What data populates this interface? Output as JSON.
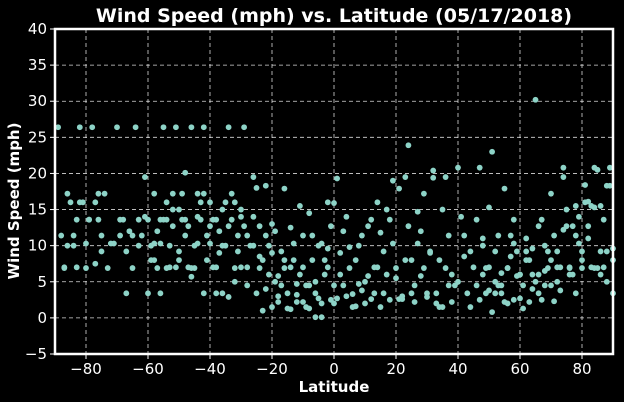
{
  "chart_data": {
    "type": "scatter",
    "title": "Wind Speed (mph) vs. Latitude (05/17/2018)",
    "xlabel": "Latitude",
    "ylabel": "Wind Speed (mph)",
    "xlim": [
      -90,
      90
    ],
    "ylim": [
      -5,
      40
    ],
    "xticks": [
      -80,
      -60,
      -40,
      -20,
      0,
      20,
      40,
      60,
      80
    ],
    "yticks": [
      -5,
      0,
      5,
      10,
      15,
      20,
      25,
      30,
      35,
      40
    ],
    "xtick_labels": [
      "−80",
      "−60",
      "−40",
      "−20",
      "0",
      "20",
      "40",
      "60",
      "80"
    ],
    "ytick_labels": [
      "−5",
      "0",
      "5",
      "10",
      "15",
      "20",
      "25",
      "30",
      "35",
      "40"
    ],
    "grid": true,
    "colors": {
      "background": "#000000",
      "marker": "#8dd3c7",
      "text": "#ffffff"
    },
    "points": [
      [
        -89,
        26.4
      ],
      [
        -87,
        7
      ],
      [
        -86,
        17.2
      ],
      [
        -85,
        16
      ],
      [
        -84,
        10
      ],
      [
        -83,
        13.6
      ],
      [
        -82,
        26.4
      ],
      [
        -81,
        16
      ],
      [
        -80,
        10.3
      ],
      [
        -79,
        13.6
      ],
      [
        -78,
        26.4
      ],
      [
        -77,
        16
      ],
      [
        -76,
        13.6
      ],
      [
        -75,
        9.2
      ],
      [
        -74,
        17.2
      ],
      [
        -73,
        6.9
      ],
      [
        -72,
        10.3
      ],
      [
        -88,
        11.4
      ],
      [
        -87,
        6.9
      ],
      [
        -86,
        10
      ],
      [
        -84,
        11.4
      ],
      [
        -83,
        7
      ],
      [
        -82,
        16
      ],
      [
        -80,
        6.9
      ],
      [
        -79,
        13.6
      ],
      [
        -77,
        7.5
      ],
      [
        -76,
        17.2
      ],
      [
        -75,
        11.4
      ],
      [
        -70,
        26.4
      ],
      [
        -69,
        11.4
      ],
      [
        -68,
        13.6
      ],
      [
        -67,
        3.4
      ],
      [
        -66,
        12
      ],
      [
        -65,
        11.4
      ],
      [
        -64,
        26.4
      ],
      [
        -63,
        13.6
      ],
      [
        -62,
        11.4
      ],
      [
        -61,
        19.5
      ],
      [
        -60,
        13.6
      ],
      [
        -59,
        10
      ],
      [
        -58,
        8
      ],
      [
        -57,
        12
      ],
      [
        -56,
        10.3
      ],
      [
        -55,
        26.4
      ],
      [
        -54,
        16
      ],
      [
        -53,
        7
      ],
      [
        -52,
        12.7
      ],
      [
        -51,
        26.4
      ],
      [
        -50,
        15
      ],
      [
        -49,
        13.6
      ],
      [
        -48,
        11.4
      ],
      [
        -47,
        7
      ],
      [
        -46,
        26.4
      ],
      [
        -45,
        10
      ],
      [
        -44,
        14
      ],
      [
        -43,
        13.6
      ],
      [
        -42,
        26.4
      ],
      [
        -41,
        11.4
      ],
      [
        -40,
        10.3
      ],
      [
        -39,
        7
      ],
      [
        -38,
        13.6
      ],
      [
        -37,
        9
      ],
      [
        -36,
        15
      ],
      [
        -35,
        16
      ],
      [
        -34,
        26.4
      ],
      [
        -33,
        13.6
      ],
      [
        -32,
        6.9
      ],
      [
        -31,
        11.4
      ],
      [
        -30,
        15
      ],
      [
        -29,
        26.4
      ],
      [
        -28,
        7
      ],
      [
        -27,
        10
      ],
      [
        -71,
        10.3
      ],
      [
        -69,
        13.6
      ],
      [
        -67,
        9.2
      ],
      [
        -65,
        6.9
      ],
      [
        -63,
        10
      ],
      [
        -61,
        14
      ],
      [
        -59,
        8
      ],
      [
        -57,
        6.9
      ],
      [
        -55,
        13.6
      ],
      [
        -53,
        10
      ],
      [
        -51,
        7
      ],
      [
        -49,
        17.2
      ],
      [
        -47,
        12.7
      ],
      [
        -45,
        6.9
      ],
      [
        -43,
        16
      ],
      [
        -41,
        8
      ],
      [
        -39,
        13.6
      ],
      [
        -37,
        12
      ],
      [
        -35,
        10
      ],
      [
        -33,
        17.2
      ],
      [
        -31,
        9.2
      ],
      [
        -29,
        12.7
      ],
      [
        -60,
        3.4
      ],
      [
        -58,
        17.2
      ],
      [
        -56,
        13.6
      ],
      [
        -54,
        6.9
      ],
      [
        -52,
        15
      ],
      [
        -50,
        8
      ],
      [
        -48,
        13.6
      ],
      [
        -46,
        5.7
      ],
      [
        -44,
        17.2
      ],
      [
        -42,
        3.4
      ],
      [
        -40,
        16
      ],
      [
        -38,
        7
      ],
      [
        -36,
        3.4
      ],
      [
        -34,
        12.7
      ],
      [
        -32,
        5
      ],
      [
        -30,
        14
      ],
      [
        -28,
        4.5
      ],
      [
        -26,
        10
      ],
      [
        -58,
        10.3
      ],
      [
        -56,
        3.4
      ],
      [
        -54,
        13.6
      ],
      [
        -52,
        17.2
      ],
      [
        -50,
        9.2
      ],
      [
        -48,
        20.1
      ],
      [
        -46,
        6.9
      ],
      [
        -44,
        10.3
      ],
      [
        -42,
        17.2
      ],
      [
        -40,
        12.7
      ],
      [
        -38,
        3.4
      ],
      [
        -36,
        10
      ],
      [
        -34,
        2.9
      ],
      [
        -32,
        16
      ],
      [
        -30,
        7
      ],
      [
        -28,
        11.4
      ],
      [
        -26,
        19.5
      ],
      [
        -25,
        3.4
      ],
      [
        -24,
        12.7
      ],
      [
        -23,
        1
      ],
      [
        -22,
        18.3
      ],
      [
        -21,
        10
      ],
      [
        -20,
        13
      ],
      [
        -19,
        5
      ],
      [
        -18,
        2.2
      ],
      [
        -17,
        9.2
      ],
      [
        -16,
        6.9
      ],
      [
        -15,
        3.4
      ],
      [
        -14,
        12.5
      ],
      [
        -13,
        8
      ],
      [
        -12,
        2.2
      ],
      [
        -11,
        15.5
      ],
      [
        -10,
        11.4
      ],
      [
        -9,
        4.5
      ],
      [
        -8,
        1.3
      ],
      [
        -7,
        8
      ],
      [
        -6,
        3.4
      ],
      [
        -5,
        10
      ],
      [
        -4,
        0.1
      ],
      [
        -3,
        6
      ],
      [
        -2,
        16
      ],
      [
        -1,
        2.5
      ],
      [
        -25,
        18
      ],
      [
        -23,
        8
      ],
      [
        -21,
        6
      ],
      [
        -19,
        12
      ],
      [
        -17,
        4.5
      ],
      [
        -15,
        1.3
      ],
      [
        -13,
        10.3
      ],
      [
        -11,
        6
      ],
      [
        -9,
        1.5
      ],
      [
        -7,
        11.4
      ],
      [
        -5,
        2.7
      ],
      [
        -3,
        8
      ],
      [
        -1,
        12.7
      ],
      [
        -24,
        6.9
      ],
      [
        -22,
        4
      ],
      [
        -20,
        9
      ],
      [
        -18,
        3
      ],
      [
        -16,
        17.9
      ],
      [
        -14,
        7
      ],
      [
        -12,
        4.7
      ],
      [
        -10,
        2.2
      ],
      [
        -8,
        14.5
      ],
      [
        -6,
        5
      ],
      [
        -4,
        2
      ],
      [
        -2,
        9.6
      ],
      [
        0,
        15.9
      ],
      [
        -26,
        14
      ],
      [
        -24,
        8.5
      ],
      [
        -22,
        11.4
      ],
      [
        -20,
        1.5
      ],
      [
        -18,
        5.8
      ],
      [
        -16,
        8
      ],
      [
        -14,
        1.2
      ],
      [
        -12,
        3.2
      ],
      [
        -10,
        7
      ],
      [
        -8,
        4.5
      ],
      [
        -6,
        0.1
      ],
      [
        -4,
        10.3
      ],
      [
        -2,
        7
      ],
      [
        0,
        4.5
      ],
      [
        1,
        19.3
      ],
      [
        2,
        9
      ],
      [
        3,
        12
      ],
      [
        4,
        3
      ],
      [
        5,
        6.9
      ],
      [
        6,
        1.5
      ],
      [
        7,
        8
      ],
      [
        8,
        4.7
      ],
      [
        9,
        11.4
      ],
      [
        10,
        2
      ],
      [
        11,
        5.8
      ],
      [
        12,
        13.6
      ],
      [
        13,
        3.4
      ],
      [
        14,
        7
      ],
      [
        15,
        11.8
      ],
      [
        16,
        9.2
      ],
      [
        17,
        15
      ],
      [
        18,
        2.5
      ],
      [
        19,
        10.3
      ],
      [
        20,
        6.9
      ],
      [
        21,
        17.9
      ],
      [
        22,
        3
      ],
      [
        23,
        19.5
      ],
      [
        24,
        12.7
      ],
      [
        25,
        8
      ],
      [
        26,
        2.2
      ],
      [
        27,
        10.3
      ],
      [
        28,
        5.8
      ],
      [
        29,
        17.2
      ],
      [
        30,
        2.9
      ],
      [
        31,
        9.2
      ],
      [
        32,
        20.4
      ],
      [
        33,
        3.4
      ],
      [
        34,
        8
      ],
      [
        35,
        1.5
      ],
      [
        36,
        19.5
      ],
      [
        37,
        11.4
      ],
      [
        38,
        6
      ],
      [
        0,
        2
      ],
      [
        2,
        6
      ],
      [
        4,
        14
      ],
      [
        6,
        3.3
      ],
      [
        8,
        10
      ],
      [
        10,
        5
      ],
      [
        12,
        2.6
      ],
      [
        14,
        16
      ],
      [
        16,
        3.4
      ],
      [
        18,
        13.6
      ],
      [
        20,
        5.5
      ],
      [
        22,
        2.6
      ],
      [
        24,
        23.9
      ],
      [
        26,
        4.5
      ],
      [
        28,
        12
      ],
      [
        30,
        3.4
      ],
      [
        32,
        19.4
      ],
      [
        34,
        1.5
      ],
      [
        36,
        6.9
      ],
      [
        38,
        2.2
      ],
      [
        1,
        2.7
      ],
      [
        3,
        4.5
      ],
      [
        5,
        9.8
      ],
      [
        7,
        1.6
      ],
      [
        9,
        3.8
      ],
      [
        11,
        12.7
      ],
      [
        13,
        7
      ],
      [
        15,
        1.5
      ],
      [
        17,
        6
      ],
      [
        19,
        19
      ],
      [
        21,
        2.6
      ],
      [
        23,
        8
      ],
      [
        25,
        3.4
      ],
      [
        27,
        14.7
      ],
      [
        29,
        6.9
      ],
      [
        31,
        9
      ],
      [
        33,
        2
      ],
      [
        35,
        15
      ],
      [
        37,
        4.5
      ],
      [
        39,
        4.5
      ],
      [
        40,
        20.8
      ],
      [
        41,
        14
      ],
      [
        42,
        11.4
      ],
      [
        43,
        3.4
      ],
      [
        44,
        9.2
      ],
      [
        45,
        7
      ],
      [
        46,
        4.5
      ],
      [
        47,
        20.8
      ],
      [
        48,
        10
      ],
      [
        49,
        3.4
      ],
      [
        50,
        7
      ],
      [
        51,
        23
      ],
      [
        52,
        5
      ],
      [
        53,
        11.4
      ],
      [
        54,
        3.4
      ],
      [
        55,
        17.9
      ],
      [
        56,
        6.9
      ],
      [
        57,
        11.4
      ],
      [
        58,
        2.5
      ],
      [
        59,
        9.2
      ],
      [
        60,
        6
      ],
      [
        61,
        4.5
      ],
      [
        62,
        8
      ],
      [
        63,
        2.2
      ],
      [
        64,
        9.6
      ],
      [
        65,
        30.2
      ],
      [
        66,
        6
      ],
      [
        67,
        13.6
      ],
      [
        68,
        4.5
      ],
      [
        69,
        9.2
      ],
      [
        70,
        8
      ],
      [
        71,
        11.4
      ],
      [
        72,
        5
      ],
      [
        73,
        7
      ],
      [
        74,
        20.8
      ],
      [
        75,
        15
      ],
      [
        76,
        7
      ],
      [
        77,
        12.7
      ],
      [
        78,
        11.4
      ],
      [
        79,
        14
      ],
      [
        80,
        6.9
      ],
      [
        81,
        16
      ],
      [
        82,
        12.7
      ],
      [
        83,
        15.5
      ],
      [
        84,
        20.8
      ],
      [
        85,
        6.9
      ],
      [
        86,
        9.2
      ],
      [
        87,
        7
      ],
      [
        88,
        18.3
      ],
      [
        89,
        20.8
      ],
      [
        90,
        3.4
      ],
      [
        40,
        5
      ],
      [
        42,
        8.5
      ],
      [
        44,
        1.5
      ],
      [
        46,
        13.6
      ],
      [
        48,
        6
      ],
      [
        50,
        3.8
      ],
      [
        52,
        9.2
      ],
      [
        54,
        4.5
      ],
      [
        56,
        6.9
      ],
      [
        58,
        10.3
      ],
      [
        60,
        2.7
      ],
      [
        62,
        11
      ],
      [
        64,
        6
      ],
      [
        66,
        3.4
      ],
      [
        68,
        10
      ],
      [
        70,
        17.2
      ],
      [
        72,
        7
      ],
      [
        74,
        19.5
      ],
      [
        76,
        6
      ],
      [
        78,
        15.5
      ],
      [
        80,
        8
      ],
      [
        82,
        11
      ],
      [
        84,
        15.3
      ],
      [
        86,
        6
      ],
      [
        88,
        9.2
      ],
      [
        90,
        9.6
      ],
      [
        47,
        2.5
      ],
      [
        49,
        6.9
      ],
      [
        51,
        0.8
      ],
      [
        53,
        4.5
      ],
      [
        55,
        2.2
      ],
      [
        57,
        8.5
      ],
      [
        59,
        5.8
      ],
      [
        61,
        1.3
      ],
      [
        63,
        8
      ],
      [
        65,
        5
      ],
      [
        67,
        2.5
      ],
      [
        69,
        6.9
      ],
      [
        71,
        2.3
      ],
      [
        73,
        3.8
      ],
      [
        75,
        12.7
      ],
      [
        77,
        6
      ],
      [
        79,
        10.3
      ],
      [
        81,
        18.4
      ],
      [
        83,
        7
      ],
      [
        85,
        20.5
      ],
      [
        87,
        13.6
      ],
      [
        89,
        18.3
      ],
      [
        48,
        11
      ],
      [
        50,
        15.3
      ],
      [
        52,
        3.4
      ],
      [
        54,
        6.2
      ],
      [
        56,
        2
      ],
      [
        58,
        13.6
      ],
      [
        60,
        6
      ],
      [
        62,
        9.2
      ],
      [
        64,
        4
      ],
      [
        66,
        12.7
      ],
      [
        68,
        6.5
      ],
      [
        70,
        4.5
      ],
      [
        72,
        9.2
      ],
      [
        74,
        12.2
      ],
      [
        76,
        6.9
      ],
      [
        78,
        3.4
      ],
      [
        80,
        9.2
      ],
      [
        82,
        16.1
      ],
      [
        84,
        6.9
      ],
      [
        86,
        15.5
      ],
      [
        88,
        5
      ],
      [
        90,
        8
      ]
    ]
  }
}
